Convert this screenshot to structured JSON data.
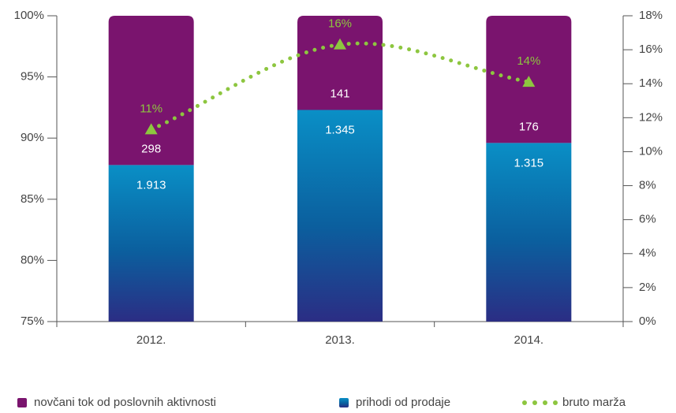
{
  "chart_data": {
    "type": "bar",
    "stacked": true,
    "categories": [
      "2012.",
      "2013.",
      "2014."
    ],
    "series": [
      {
        "name": "prihodi od prodaje",
        "color": "#0a85c2",
        "values": [
          87.8,
          92.3,
          89.6
        ],
        "value_labels": [
          "1.913",
          "1.345",
          "1.315"
        ]
      },
      {
        "name": "novčani tok od poslovnih aktivnosti",
        "color": "#7a146e",
        "values": [
          12.2,
          7.7,
          10.4
        ],
        "value_labels": [
          "298",
          "141",
          "176"
        ]
      },
      {
        "name": "bruto marža",
        "type": "line",
        "axis": "y2",
        "color": "#8dc63f",
        "values": [
          11.3,
          16.3,
          14.1
        ],
        "value_labels": [
          "11%",
          "16%",
          "14%"
        ]
      }
    ],
    "ylim": [
      75,
      100
    ],
    "yticks": [
      {
        "value": 75,
        "label": "75%"
      },
      {
        "value": 80,
        "label": "80%"
      },
      {
        "value": 85,
        "label": "85%"
      },
      {
        "value": 90,
        "label": "90%"
      },
      {
        "value": 95,
        "label": "95%"
      },
      {
        "value": 100,
        "label": "100%"
      }
    ],
    "y2lim": [
      0,
      18
    ],
    "y2ticks": [
      {
        "value": 0,
        "label": "0%"
      },
      {
        "value": 2,
        "label": "2%"
      },
      {
        "value": 4,
        "label": "4%"
      },
      {
        "value": 6,
        "label": "6%"
      },
      {
        "value": 8,
        "label": "8%"
      },
      {
        "value": 10,
        "label": "10%"
      },
      {
        "value": 12,
        "label": "12%"
      },
      {
        "value": 14,
        "label": "14%"
      },
      {
        "value": 16,
        "label": "16%"
      },
      {
        "value": 18,
        "label": "18%"
      }
    ],
    "legend": "bottom"
  }
}
